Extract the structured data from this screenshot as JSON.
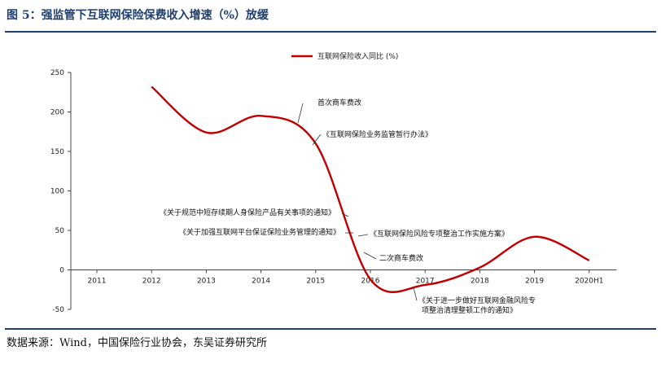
{
  "figure": {
    "title": "图 5：强监管下互联网保险保费收入增速（%）放缓",
    "source": "数据来源：Wind，中国保险行业协会，东吴证券研究所"
  },
  "colors": {
    "line": "#c00000",
    "header": "#1f3f6e"
  },
  "chart_data": {
    "type": "line",
    "categories": [
      "2011",
      "2012",
      "2013",
      "2014",
      "2015",
      "2016",
      "2017",
      "2018",
      "2019",
      "2020H1"
    ],
    "series": [
      {
        "name": "互联网保险收入同比 (%)",
        "values": [
          null,
          232,
          174,
          195,
          160,
          -12,
          -19,
          3,
          42,
          12
        ]
      }
    ],
    "ylim": [
      -50,
      250
    ],
    "yticks": [
      -50,
      0,
      50,
      100,
      150,
      200,
      250
    ],
    "legend": "top-right",
    "grid": false,
    "annotations": [
      {
        "lines": [
          "首次商车费改"
        ],
        "x": 2014.65,
        "y": 188
      },
      {
        "lines": [
          "《互联网保险业务监管暂行办法》"
        ],
        "x": 2014.85,
        "y": 160
      },
      {
        "lines": [
          "《关于规范中短存续期人身保险产品有关事项的通知》"
        ],
        "x": 2015.4,
        "y": 70
      },
      {
        "lines": [
          "《关于加强互联网平台保证保险业务管理的通知》"
        ],
        "x": 2015.52,
        "y": 46
      },
      {
        "lines": [
          "《互联网保险风险专项整治工作实施方案》"
        ],
        "x": 2015.7,
        "y": 42
      },
      {
        "lines": [
          "二次商车费改"
        ],
        "x": 2015.78,
        "y": 14
      },
      {
        "lines": [
          "《关于进一步做好互联网金融风险专",
          "项整治清理整顿工作的通知》"
        ],
        "x": 2017.0,
        "y": -19
      }
    ]
  }
}
